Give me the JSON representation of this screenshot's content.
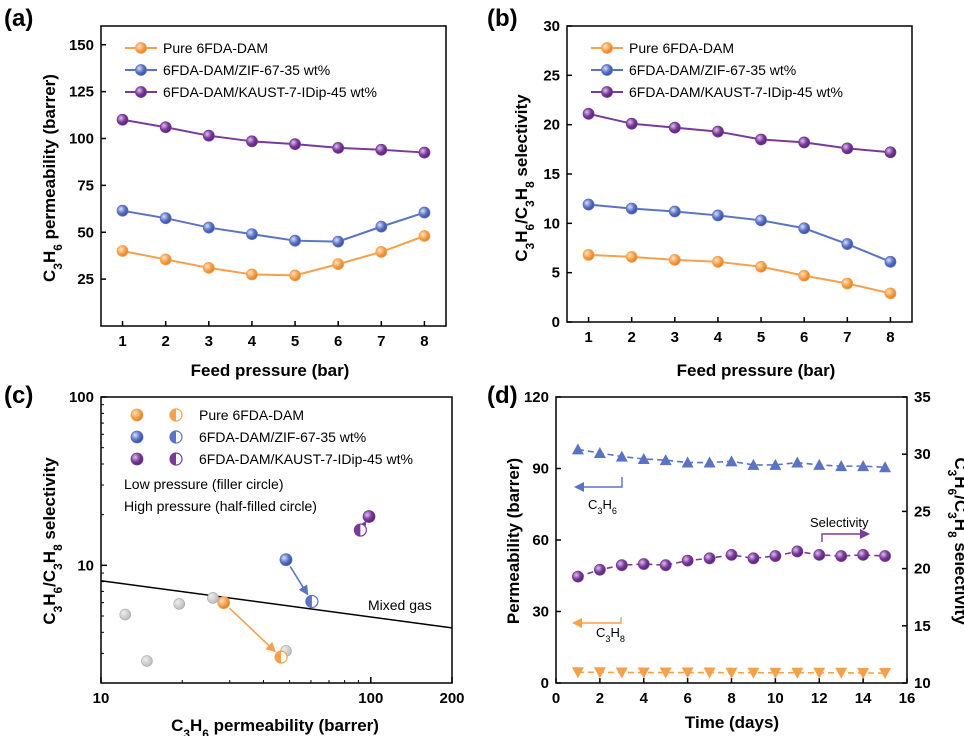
{
  "colors": {
    "orange": "#f7a04c",
    "blue": "#5b73c4",
    "purple": "#7a3a9a",
    "gray": "#bbbbbb",
    "line": "#000000"
  },
  "chart_data": [
    {
      "panel": "(a)",
      "type": "line",
      "xlabel": "Feed pressure (bar)",
      "ylabel": "C3H6 permeability (barrer)",
      "xlim": [
        0.5,
        8.5
      ],
      "ylim": [
        0,
        160
      ],
      "xticks": [
        1,
        2,
        3,
        4,
        5,
        6,
        7,
        8
      ],
      "yticks": [
        25,
        50,
        75,
        100,
        125,
        150
      ],
      "legend_position": "top-left",
      "x": [
        1,
        2,
        3,
        4,
        5,
        6,
        7,
        8
      ],
      "series": [
        {
          "name": "Pure 6FDA-DAM",
          "color": "orange",
          "values": [
            40,
            35.5,
            31,
            27.5,
            27,
            33,
            39.5,
            48
          ]
        },
        {
          "name": "6FDA-DAM/ZIF-67-35 wt%",
          "color": "blue",
          "values": [
            61.5,
            57.5,
            52.5,
            49,
            45.5,
            45,
            53,
            60.5
          ]
        },
        {
          "name": "6FDA-DAM/KAUST-7-IDip-45 wt%",
          "color": "purple",
          "values": [
            110,
            106,
            101.5,
            98.5,
            97,
            95,
            94,
            92.5
          ]
        }
      ]
    },
    {
      "panel": "(b)",
      "type": "line",
      "xlabel": "Feed pressure (bar)",
      "ylabel": "C3H6/C3H8 selectivity",
      "xlim": [
        0.5,
        8.5
      ],
      "ylim": [
        0,
        30
      ],
      "xticks": [
        1,
        2,
        3,
        4,
        5,
        6,
        7,
        8
      ],
      "yticks": [
        0,
        5,
        10,
        15,
        20,
        25,
        30
      ],
      "legend_position": "top-left",
      "x": [
        1,
        2,
        3,
        4,
        5,
        6,
        7,
        8
      ],
      "series": [
        {
          "name": "Pure 6FDA-DAM",
          "color": "orange",
          "values": [
            6.8,
            6.6,
            6.3,
            6.1,
            5.6,
            4.7,
            3.9,
            2.9
          ]
        },
        {
          "name": "6FDA-DAM/ZIF-67-35 wt%",
          "color": "blue",
          "values": [
            11.9,
            11.5,
            11.2,
            10.8,
            10.3,
            9.5,
            7.9,
            6.1
          ]
        },
        {
          "name": "6FDA-DAM/KAUST-7-IDip-45 wt%",
          "color": "purple",
          "values": [
            21.1,
            20.1,
            19.7,
            19.3,
            18.5,
            18.2,
            17.6,
            17.2
          ]
        }
      ]
    },
    {
      "panel": "(c)",
      "type": "scatter",
      "xlabel": "C3H6 permeability (barrer)",
      "ylabel": "C3H6/C3H8 selectivity",
      "xscale": "log",
      "yscale": "log",
      "xlim": [
        10,
        200
      ],
      "ylim": [
        2,
        100
      ],
      "xticks": [
        10,
        100,
        200
      ],
      "yticks": [
        10,
        100
      ],
      "legend_position": "top-left",
      "legend": [
        {
          "name": "Pure 6FDA-DAM",
          "color": "orange"
        },
        {
          "name": "6FDA-DAM/ZIF-67-35 wt%",
          "color": "blue"
        },
        {
          "name": "6FDA-DAM/KAUST-7-IDip-45 wt%",
          "color": "purple"
        }
      ],
      "notes": [
        "Low pressure (filler circle)",
        "High pressure (half-filled circle)"
      ],
      "trade_off_line": {
        "label": "Mixed gas",
        "x": [
          10,
          200
        ],
        "y": [
          8.1,
          4.25
        ]
      },
      "series": [
        {
          "name": "Pure 6FDA-DAM",
          "color": "orange",
          "low_pressure": [
            28.5,
            6.0
          ],
          "high_pressure": [
            46.5,
            2.85
          ]
        },
        {
          "name": "6FDA-DAM/ZIF-67-35 wt%",
          "color": "blue",
          "low_pressure": [
            48.5,
            10.8
          ],
          "high_pressure": [
            60.5,
            6.1
          ]
        },
        {
          "name": "6FDA-DAM/KAUST-7-IDip-45 wt%",
          "color": "purple",
          "low_pressure": [
            98.5,
            19.5
          ],
          "high_pressure": [
            91.5,
            16.2
          ]
        }
      ],
      "literature_points": [
        [
          12.3,
          5.1
        ],
        [
          14.8,
          2.7
        ],
        [
          19.5,
          5.9
        ],
        [
          26.0,
          6.4
        ],
        [
          48.5,
          3.1
        ]
      ]
    },
    {
      "panel": "(d)",
      "type": "line",
      "xlabel": "Time (days)",
      "ylabel": "Permeability (barrer)",
      "y2label": "C3H6/C3H8 selectivity",
      "xlim": [
        0,
        16
      ],
      "ylim": [
        0,
        120
      ],
      "y2lim": [
        10,
        35
      ],
      "xticks": [
        0,
        2,
        4,
        6,
        8,
        10,
        12,
        14,
        16
      ],
      "yticks": [
        0,
        30,
        60,
        90,
        120
      ],
      "y2ticks": [
        10,
        15,
        20,
        25,
        30,
        35
      ],
      "x": [
        1,
        2,
        3,
        4,
        5,
        6,
        7,
        8,
        9,
        10,
        11,
        12,
        13,
        14,
        15
      ],
      "series": [
        {
          "name": "C3H6",
          "axis": "left",
          "color": "blue",
          "marker": "triangle-up",
          "values": [
            98,
            96.5,
            95,
            94,
            93.5,
            92.5,
            92.5,
            93,
            91.5,
            91.5,
            92.5,
            91.5,
            91,
            91,
            90.5
          ]
        },
        {
          "name": "C3H8",
          "axis": "left",
          "color": "orange",
          "marker": "triangle-down",
          "values": [
            4.5,
            4.5,
            4.4,
            4.4,
            4.4,
            4.4,
            4.4,
            4.3,
            4.3,
            4.3,
            4.3,
            4.3,
            4.3,
            4.2,
            4.2
          ]
        },
        {
          "name": "Selectivity",
          "axis": "right",
          "color": "purple",
          "marker": "circle",
          "values": [
            19.3,
            19.9,
            20.3,
            20.4,
            20.3,
            20.7,
            20.9,
            21.2,
            20.9,
            21.1,
            21.5,
            21.2,
            21.1,
            21.2,
            21.1
          ]
        }
      ]
    }
  ]
}
